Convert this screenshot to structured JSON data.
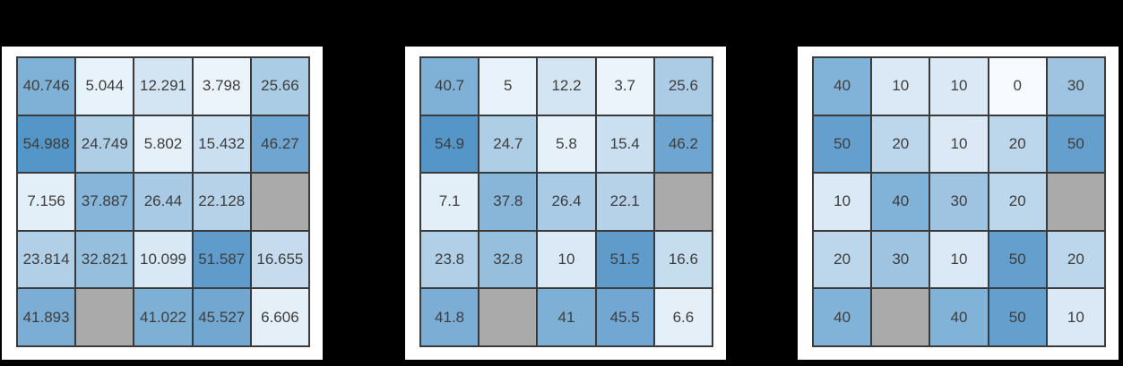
{
  "figure": {
    "background": "#000000",
    "panel_background": "#ffffff"
  },
  "heatmap_style": {
    "vmin": 0,
    "vmax": 55,
    "min_color": "#f7fbff",
    "max_color": "#5596c8",
    "nan_color": "#aaaaaa",
    "border_color": "#3a3a3a",
    "text_color": "#3d3d3d"
  },
  "chart_data": [
    {
      "type": "heatmap",
      "rows": 5,
      "cols": 5,
      "values": [
        [
          40.746,
          5.044,
          12.291,
          3.798,
          25.66
        ],
        [
          54.988,
          24.749,
          5.802,
          15.432,
          46.27
        ],
        [
          7.156,
          37.887,
          26.44,
          22.128,
          null
        ],
        [
          23.814,
          32.821,
          10.099,
          51.587,
          16.655
        ],
        [
          41.893,
          null,
          41.022,
          45.527,
          6.606
        ]
      ],
      "labels": [
        [
          "40.746",
          "5.044",
          "12.291",
          "3.798",
          "25.66"
        ],
        [
          "54.988",
          "24.749",
          "5.802",
          "15.432",
          "46.27"
        ],
        [
          "7.156",
          "37.887",
          "26.44",
          "22.128",
          ""
        ],
        [
          "23.814",
          "32.821",
          "10.099",
          "51.587",
          "16.655"
        ],
        [
          "41.893",
          "",
          "41.022",
          "45.527",
          "6.606"
        ]
      ]
    },
    {
      "type": "heatmap",
      "rows": 5,
      "cols": 5,
      "values": [
        [
          40.7,
          5,
          12.2,
          3.7,
          25.6
        ],
        [
          54.9,
          24.7,
          5.8,
          15.4,
          46.2
        ],
        [
          7.1,
          37.8,
          26.4,
          22.1,
          null
        ],
        [
          23.8,
          32.8,
          10,
          51.5,
          16.6
        ],
        [
          41.8,
          null,
          41,
          45.5,
          6.6
        ]
      ],
      "labels": [
        [
          "40.7",
          "5",
          "12.2",
          "3.7",
          "25.6"
        ],
        [
          "54.9",
          "24.7",
          "5.8",
          "15.4",
          "46.2"
        ],
        [
          "7.1",
          "37.8",
          "26.4",
          "22.1",
          ""
        ],
        [
          "23.8",
          "32.8",
          "10",
          "51.5",
          "16.6"
        ],
        [
          "41.8",
          "",
          "41",
          "45.5",
          "6.6"
        ]
      ]
    },
    {
      "type": "heatmap",
      "rows": 5,
      "cols": 5,
      "values": [
        [
          40,
          10,
          10,
          0,
          30
        ],
        [
          50,
          20,
          10,
          20,
          50
        ],
        [
          10,
          40,
          30,
          20,
          null
        ],
        [
          20,
          30,
          10,
          50,
          20
        ],
        [
          40,
          null,
          40,
          50,
          10
        ]
      ],
      "labels": [
        [
          "40",
          "10",
          "10",
          "0",
          "30"
        ],
        [
          "50",
          "20",
          "10",
          "20",
          "50"
        ],
        [
          "10",
          "40",
          "30",
          "20",
          ""
        ],
        [
          "20",
          "30",
          "10",
          "50",
          "20"
        ],
        [
          "40",
          "",
          "40",
          "50",
          "10"
        ]
      ]
    }
  ]
}
